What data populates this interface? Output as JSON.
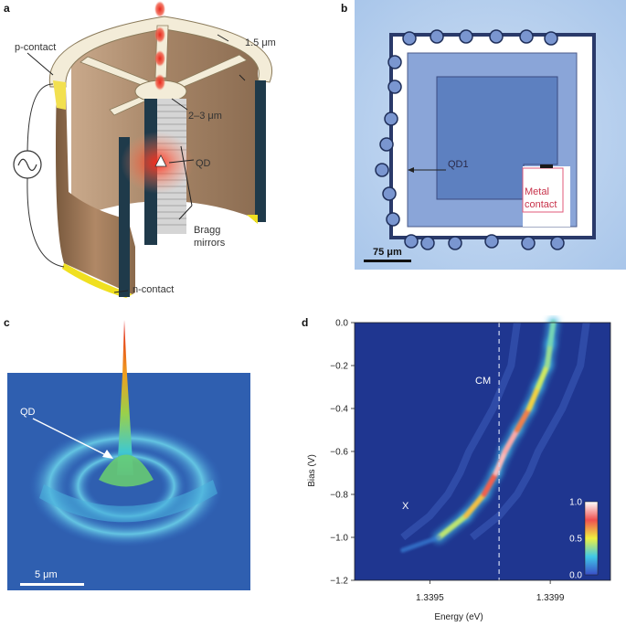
{
  "panels": {
    "a": {
      "letter": "a",
      "labels": {
        "thickness": "1.5 μm",
        "p_contact": "p-contact",
        "gap": "2–3 μm",
        "qd": "QD",
        "bragg_1": "Bragg",
        "bragg_2": "mirrors",
        "n_contact": "n-contact"
      }
    },
    "b": {
      "letter": "b",
      "labels": {
        "qd1": "QD1",
        "metal_1": "Metal",
        "metal_2": "contact",
        "scale": "75 μm"
      }
    },
    "c": {
      "letter": "c",
      "labels": {
        "qd": "QD",
        "scale": "5 μm"
      }
    },
    "d": {
      "letter": "d",
      "labels": {
        "cm": "CM",
        "x": "X"
      }
    }
  },
  "chart_data": {
    "type": "heatmap",
    "xlabel": "Energy (eV)",
    "ylabel": "Bias (V)",
    "x_ticks": [
      "1.3395",
      "1.3399"
    ],
    "x_tick_values": [
      1.3395,
      1.3399
    ],
    "xlim": [
      1.33925,
      1.3401
    ],
    "y_ticks": [
      "0.0",
      "−0.2",
      "−0.4",
      "−0.6",
      "−0.8",
      "−1.0",
      "−1.2"
    ],
    "y_tick_values": [
      0.0,
      -0.2,
      -0.4,
      -0.6,
      -0.8,
      -1.0,
      -1.2
    ],
    "ylim": [
      -1.2,
      0.0
    ],
    "colorbar_ticks": [
      "1.0",
      "0.5",
      "0.0"
    ],
    "colorbar_tick_values": [
      1.0,
      0.5,
      0.0
    ],
    "cm_marker_energy": 1.33973,
    "emission_line": [
      {
        "bias": -1.0,
        "energy": 1.33953,
        "intensity": 0.35
      },
      {
        "bias": -0.9,
        "energy": 1.33962,
        "intensity": 0.5
      },
      {
        "bias": -0.8,
        "energy": 1.33968,
        "intensity": 0.65
      },
      {
        "bias": -0.7,
        "energy": 1.33972,
        "intensity": 0.8
      },
      {
        "bias": -0.6,
        "energy": 1.33975,
        "intensity": 1.0
      },
      {
        "bias": -0.5,
        "energy": 1.33979,
        "intensity": 0.75
      },
      {
        "bias": -0.4,
        "energy": 1.33983,
        "intensity": 0.6
      },
      {
        "bias": -0.3,
        "energy": 1.33986,
        "intensity": 0.5
      },
      {
        "bias": -0.2,
        "energy": 1.33989,
        "intensity": 0.4
      },
      {
        "bias": -0.1,
        "energy": 1.3399,
        "intensity": 0.35
      },
      {
        "bias": 0.0,
        "energy": 1.33991,
        "intensity": 0.3
      }
    ]
  }
}
